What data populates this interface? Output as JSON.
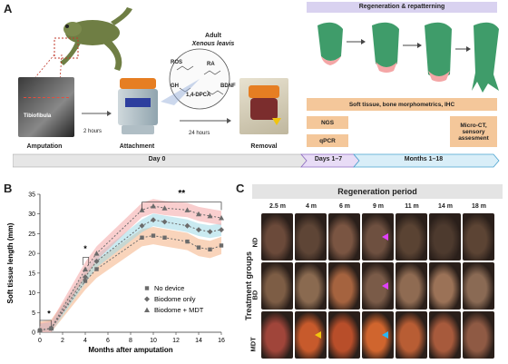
{
  "panel_a": {
    "letter": "A",
    "adult_label": "Adult",
    "species": "Xenous leavis",
    "tibiofibula": "Tibiofibula",
    "molecules": [
      "ROS",
      "RA",
      "GH",
      "1,4-DPCA",
      "BDNF"
    ],
    "step_labels": [
      "Amputation",
      "Attachment",
      "Removal"
    ],
    "arrow_labels": [
      "2  hours",
      "24 hours"
    ],
    "regeneration_title": "Regeneration & repatterning",
    "soft_tissue_box": "Soft tissue, bone morphometrics, IHC",
    "ngs": "NGS",
    "qpcr": "qPCR",
    "microct": "Micro-CT, sensory assesment",
    "timeline": [
      "Day 0",
      "Days 1–7",
      "Months 1–18"
    ]
  },
  "panel_b": {
    "letter": "B",
    "significance": [
      "*",
      "*",
      "**"
    ]
  },
  "chart_data": {
    "type": "line",
    "x": [
      0,
      1,
      4,
      5,
      9,
      10,
      11,
      13,
      14,
      15,
      16
    ],
    "xlabel": "Months after amputation",
    "ylabel": "Soft tissue length (mm)",
    "xlim": [
      0,
      16
    ],
    "ylim": [
      0,
      35
    ],
    "xticks": [
      0,
      2,
      4,
      6,
      8,
      10,
      12,
      14,
      16
    ],
    "yticks": [
      0,
      5,
      10,
      15,
      20,
      25,
      30,
      35
    ],
    "legend_position": "bottom-right",
    "series": [
      {
        "name": "No device",
        "marker": "square",
        "color": "#6b6b6b",
        "band": "#f4b183",
        "values": [
          0.5,
          1,
          13,
          16,
          24,
          24.5,
          24,
          23,
          21.5,
          21,
          22
        ]
      },
      {
        "name": "Biodome only",
        "marker": "diamond",
        "color": "#6b6b6b",
        "band": "#9fd9e6",
        "values": [
          0.5,
          1,
          14,
          18,
          27,
          28.5,
          28,
          27,
          26,
          25.5,
          26
        ]
      },
      {
        "name": "Biodome + MDT",
        "marker": "triangle",
        "color": "#6b6b6b",
        "band": "#f4a6a6",
        "values": [
          0.5,
          1,
          16,
          20,
          31,
          32,
          31.5,
          31,
          30,
          29.5,
          29
        ]
      }
    ]
  },
  "panel_c": {
    "letter": "C",
    "header": "Regeneration period",
    "timepoints": [
      "2.5 m",
      "4 m",
      "6 m",
      "9 m",
      "11 m",
      "14 m",
      "18 m"
    ],
    "group_axis": "Treatment groups",
    "groups": [
      "ND",
      "BD",
      "MDT"
    ]
  }
}
